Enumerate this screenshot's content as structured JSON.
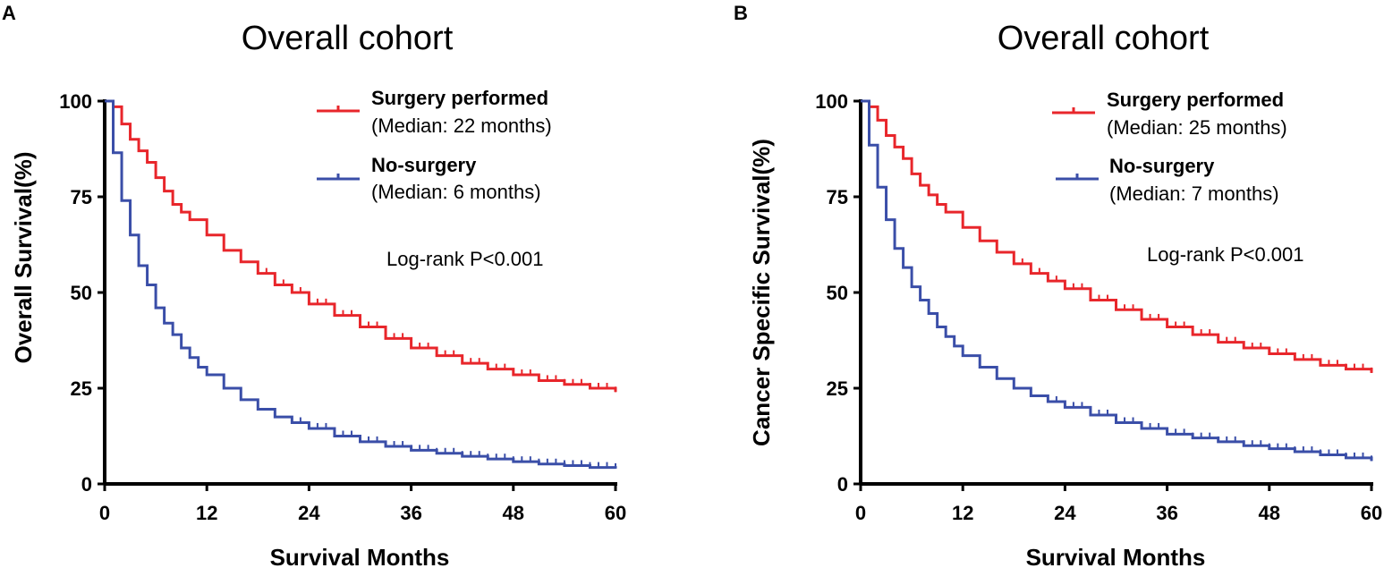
{
  "chart_data": [
    {
      "type": "line",
      "subtype": "kaplan-meier",
      "panel": "A",
      "title": "Overall cohort",
      "xlabel": "Survival Months",
      "ylabel": "Overall Survival(%)",
      "xlim": [
        0,
        60
      ],
      "ylim": [
        0,
        100
      ],
      "xticks": [
        0,
        12,
        24,
        36,
        48,
        60
      ],
      "yticks": [
        0,
        25,
        50,
        75,
        100
      ],
      "grid": false,
      "legend_position": "top-right",
      "annotation": "Log-rank P<0.001",
      "series": [
        {
          "name": "Surgery performed",
          "median_label": "(Median: 22 months)",
          "color": "#e8262b",
          "x": [
            0,
            1,
            2,
            3,
            4,
            5,
            6,
            7,
            8,
            9,
            10,
            12,
            14,
            16,
            18,
            20,
            22,
            24,
            27,
            30,
            33,
            36,
            39,
            42,
            45,
            48,
            51,
            54,
            57,
            60
          ],
          "y": [
            100,
            98.5,
            94,
            90,
            87,
            84,
            80,
            76.5,
            73,
            71,
            69,
            65,
            61,
            58,
            55,
            52,
            50,
            47,
            44,
            41,
            38,
            35.5,
            33.5,
            31.5,
            30,
            28.5,
            27,
            26,
            25,
            24
          ]
        },
        {
          "name": "No-surgery",
          "median_label": "(Median: 6 months)",
          "color": "#3a4ea8",
          "x": [
            0,
            1,
            2,
            3,
            4,
            5,
            6,
            7,
            8,
            9,
            10,
            11,
            12,
            14,
            16,
            18,
            20,
            22,
            24,
            27,
            30,
            33,
            36,
            39,
            42,
            45,
            48,
            51,
            54,
            57,
            60
          ],
          "y": [
            100,
            86.5,
            74,
            65,
            57,
            52,
            46,
            42,
            39,
            35.5,
            33,
            30.5,
            28.5,
            25,
            22,
            19.5,
            17.5,
            16,
            14.5,
            12.5,
            11,
            9.8,
            8.8,
            8,
            7.2,
            6.5,
            5.8,
            5.2,
            4.8,
            4.3,
            4
          ]
        }
      ]
    },
    {
      "type": "line",
      "subtype": "kaplan-meier",
      "panel": "B",
      "title": "Overall cohort",
      "xlabel": "Survival Months",
      "ylabel": "Cancer Specific Survival(%)",
      "xlim": [
        0,
        60
      ],
      "ylim": [
        0,
        100
      ],
      "xticks": [
        0,
        12,
        24,
        36,
        48,
        60
      ],
      "yticks": [
        0,
        25,
        50,
        75,
        100
      ],
      "grid": false,
      "legend_position": "top-right",
      "annotation": "Log-rank P<0.001",
      "series": [
        {
          "name": "Surgery performed",
          "median_label": "(Median: 25 months)",
          "color": "#e8262b",
          "x": [
            0,
            1,
            2,
            3,
            4,
            5,
            6,
            7,
            8,
            9,
            10,
            12,
            14,
            16,
            18,
            20,
            22,
            24,
            27,
            30,
            33,
            36,
            39,
            42,
            45,
            48,
            51,
            54,
            57,
            60
          ],
          "y": [
            100,
            98.5,
            95,
            91,
            88,
            85,
            81,
            78,
            75.5,
            73,
            71,
            67,
            63.5,
            60.5,
            57.5,
            55,
            53,
            51,
            48,
            45.5,
            43,
            41,
            39,
            37,
            35.5,
            34,
            32.5,
            31,
            30,
            29
          ]
        },
        {
          "name": "No-surgery",
          "median_label": "(Median: 7 months)",
          "color": "#3a4ea8",
          "x": [
            0,
            1,
            2,
            3,
            4,
            5,
            6,
            7,
            8,
            9,
            10,
            11,
            12,
            14,
            16,
            18,
            20,
            22,
            24,
            27,
            30,
            33,
            36,
            39,
            42,
            45,
            48,
            51,
            54,
            57,
            60
          ],
          "y": [
            100,
            88.5,
            77.5,
            69,
            61.5,
            56.5,
            51.5,
            48,
            44.5,
            41,
            38.5,
            36,
            33.5,
            30.5,
            27.5,
            25,
            23,
            21.5,
            20,
            18,
            16,
            14.5,
            13,
            12,
            11,
            10,
            9.2,
            8.4,
            7.6,
            6.8,
            6
          ]
        }
      ]
    }
  ]
}
